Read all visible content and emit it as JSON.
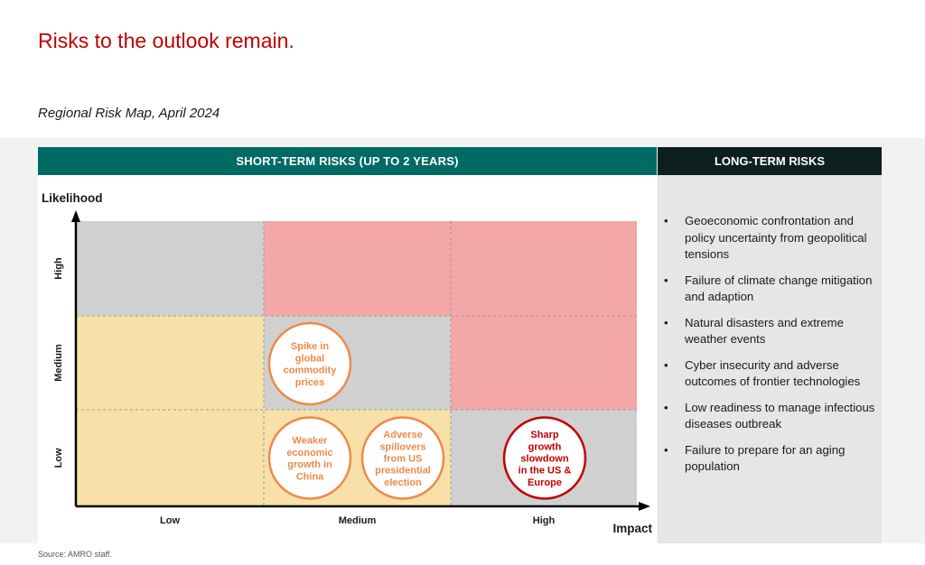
{
  "title": "Risks to the outlook remain.",
  "subtitle": "Regional Risk Map, April 2024",
  "short_term_header": "SHORT-TERM RISKS (UP TO 2 YEARS)",
  "long_term_header": "LONG-TERM RISKS",
  "source": "Source: AMRO staff.",
  "colors": {
    "title": "#c00000",
    "short_header_bg": "#006b64",
    "long_header_bg": "#0d1f1e",
    "cell_grey": "#d0d0d0",
    "cell_pink": "#f4a7a7",
    "cell_yellow": "#f7e1a8",
    "bubble_orange": "#ed8a4a",
    "bubble_red": "#c00000"
  },
  "matrix": {
    "y_axis_label": "Likelihood",
    "x_axis_label": "Impact",
    "rows": [
      "High",
      "Medium",
      "Low"
    ],
    "cols": [
      "Low",
      "Medium",
      "High"
    ],
    "cells": [
      [
        "grey",
        "pink",
        "pink"
      ],
      [
        "yellow",
        "grey",
        "pink"
      ],
      [
        "yellow",
        "yellow",
        "grey"
      ]
    ],
    "bubbles": [
      {
        "lines": [
          "Spike in",
          "global",
          "commodity",
          "prices"
        ],
        "likelihood": "Medium",
        "impact": "Medium",
        "slot": "left",
        "color": "orange"
      },
      {
        "lines": [
          "Weaker",
          "economic",
          "growth in",
          "China"
        ],
        "likelihood": "Low",
        "impact": "Medium",
        "slot": "left",
        "color": "orange"
      },
      {
        "lines": [
          "Adverse",
          "spillovers",
          "from US",
          "presidential",
          "election"
        ],
        "likelihood": "Low",
        "impact": "Medium",
        "slot": "right",
        "color": "orange"
      },
      {
        "lines": [
          "Sharp",
          "growth",
          "slowdown",
          "in the US &",
          "Europe"
        ],
        "likelihood": "Low",
        "impact": "High",
        "slot": "center",
        "color": "red"
      }
    ]
  },
  "long_term_risks": [
    "Geoeconomic confrontation and policy uncertainty from geopolitical tensions",
    "Failure of climate change mitigation and adaption",
    "Natural disasters and extreme weather events",
    "Cyber insecurity and adverse outcomes of frontier technologies",
    "Low readiness to manage infectious diseases outbreak",
    "Failure to prepare for an aging population"
  ]
}
